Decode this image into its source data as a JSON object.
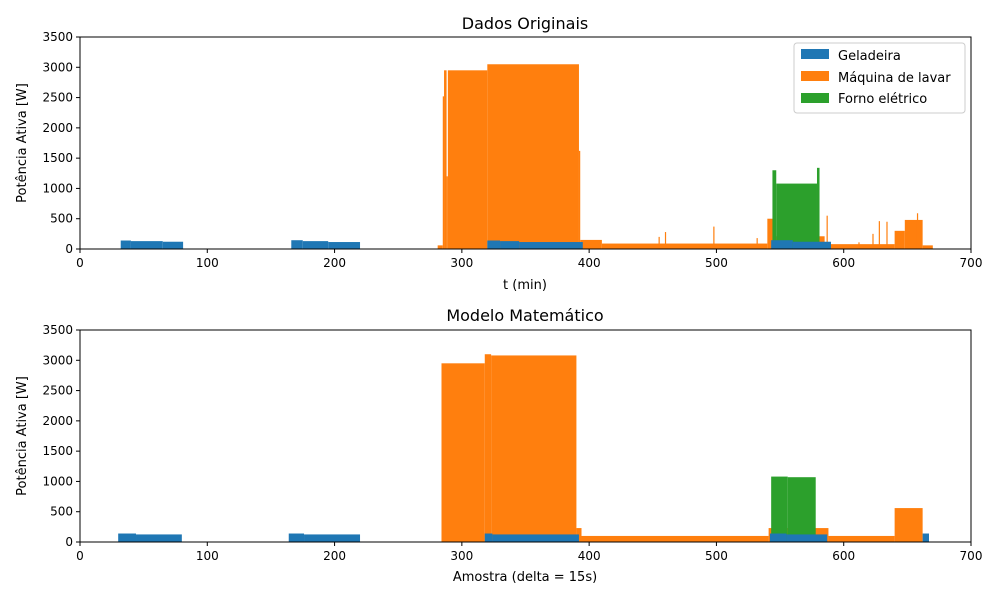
{
  "colors": {
    "geladeira": "#1f77b4",
    "maquina": "#ff7f0e",
    "forno": "#2ca02c"
  },
  "chart_data": [
    {
      "type": "bar",
      "title": "Dados Originais",
      "xlabel": "t (min)",
      "ylabel": "Potência Ativa [W]",
      "xlim": [
        0,
        700
      ],
      "ylim": [
        0,
        3500
      ],
      "xticks": [
        "0",
        "100",
        "200",
        "300",
        "400",
        "500",
        "600",
        "700"
      ],
      "yticks": [
        "0",
        "500",
        "1000",
        "1500",
        "2000",
        "2500",
        "3000",
        "3500"
      ],
      "legend_position": "top-right",
      "legend": [
        "Geladeira",
        "Máquina de lavar",
        "Forno elétrico"
      ],
      "series": [
        {
          "name": "Geladeira",
          "segments": [
            {
              "x": [
                32,
                40
              ],
              "y": 140
            },
            {
              "x": [
                40,
                65
              ],
              "y": 130
            },
            {
              "x": [
                65,
                81
              ],
              "y": 120
            },
            {
              "x": [
                166,
                175
              ],
              "y": 145
            },
            {
              "x": [
                175,
                195
              ],
              "y": 130
            },
            {
              "x": [
                195,
                220
              ],
              "y": 115
            },
            {
              "x": [
                320,
                330
              ],
              "y": 140
            },
            {
              "x": [
                330,
                345
              ],
              "y": 130
            },
            {
              "x": [
                345,
                395
              ],
              "y": 115
            },
            {
              "x": [
                543,
                560
              ],
              "y": 145
            },
            {
              "x": [
                560,
                590
              ],
              "y": 120
            }
          ]
        },
        {
          "name": "Máquina de lavar",
          "segments": [
            {
              "x": [
                281,
                285
              ],
              "y": 60
            },
            {
              "x": [
                285,
                286
              ],
              "y": 2520
            },
            {
              "x": [
                286,
                288
              ],
              "y": 2950
            },
            {
              "x": [
                288,
                289
              ],
              "y": 1200
            },
            {
              "x": [
                289,
                320
              ],
              "y": 2950
            },
            {
              "x": [
                320,
                392
              ],
              "y": 3050
            },
            {
              "x": [
                392,
                393
              ],
              "y": 1620
            },
            {
              "x": [
                393,
                410
              ],
              "y": 150
            },
            {
              "x": [
                410,
                540
              ],
              "y": 90
            },
            {
              "x": [
                540,
                545
              ],
              "y": 500
            },
            {
              "x": [
                545,
                585
              ],
              "y": 210
            },
            {
              "x": [
                585,
                640
              ],
              "y": 80
            },
            {
              "x": [
                640,
                648
              ],
              "y": 300
            },
            {
              "x": [
                648,
                662
              ],
              "y": 480
            },
            {
              "x": [
                662,
                670
              ],
              "y": 60
            }
          ],
          "spikes": [
            {
              "x": 455,
              "y": 200
            },
            {
              "x": 460,
              "y": 280
            },
            {
              "x": 498,
              "y": 370
            },
            {
              "x": 532,
              "y": 180
            },
            {
              "x": 578,
              "y": 330
            },
            {
              "x": 587,
              "y": 550
            },
            {
              "x": 612,
              "y": 110
            },
            {
              "x": 623,
              "y": 250
            },
            {
              "x": 628,
              "y": 460
            },
            {
              "x": 634,
              "y": 450
            },
            {
              "x": 658,
              "y": 590
            }
          ]
        },
        {
          "name": "Forno elétrico",
          "segments": [
            {
              "x": [
                544,
                547
              ],
              "y": 1300
            },
            {
              "x": [
                547,
                579
              ],
              "y": 1080
            },
            {
              "x": [
                579,
                581
              ],
              "y": 1340
            }
          ]
        }
      ]
    },
    {
      "type": "bar",
      "title": "Modelo Matemático",
      "xlabel": "Amostra (delta = 15s)",
      "ylabel": "Potência Ativa [W]",
      "xlim": [
        0,
        700
      ],
      "ylim": [
        0,
        3500
      ],
      "xticks": [
        "0",
        "100",
        "200",
        "300",
        "400",
        "500",
        "600",
        "700"
      ],
      "yticks": [
        "0",
        "500",
        "1000",
        "1500",
        "2000",
        "2500",
        "3000",
        "3500"
      ],
      "series": [
        {
          "name": "Geladeira",
          "segments": [
            {
              "x": [
                30,
                44
              ],
              "y": 140
            },
            {
              "x": [
                44,
                80
              ],
              "y": 125
            },
            {
              "x": [
                164,
                176
              ],
              "y": 140
            },
            {
              "x": [
                176,
                220
              ],
              "y": 125
            },
            {
              "x": [
                318,
                324
              ],
              "y": 140
            },
            {
              "x": [
                324,
                392
              ],
              "y": 125
            },
            {
              "x": [
                542,
                555
              ],
              "y": 140
            },
            {
              "x": [
                555,
                587
              ],
              "y": 125
            },
            {
              "x": [
                662,
                667
              ],
              "y": 140
            }
          ]
        },
        {
          "name": "Máquina de lavar",
          "segments": [
            {
              "x": [
                284,
                318
              ],
              "y": 2950
            },
            {
              "x": [
                318,
                323
              ],
              "y": 3100
            },
            {
              "x": [
                323,
                390
              ],
              "y": 3080
            },
            {
              "x": [
                390,
                394
              ],
              "y": 230
            },
            {
              "x": [
                394,
                541
              ],
              "y": 100
            },
            {
              "x": [
                541,
                588
              ],
              "y": 230
            },
            {
              "x": [
                588,
                640
              ],
              "y": 100
            },
            {
              "x": [
                640,
                662
              ],
              "y": 560
            }
          ]
        },
        {
          "name": "Forno elétrico",
          "segments": [
            {
              "x": [
                543,
                556
              ],
              "y": 1080
            },
            {
              "x": [
                556,
                578
              ],
              "y": 1070
            }
          ]
        }
      ]
    }
  ]
}
